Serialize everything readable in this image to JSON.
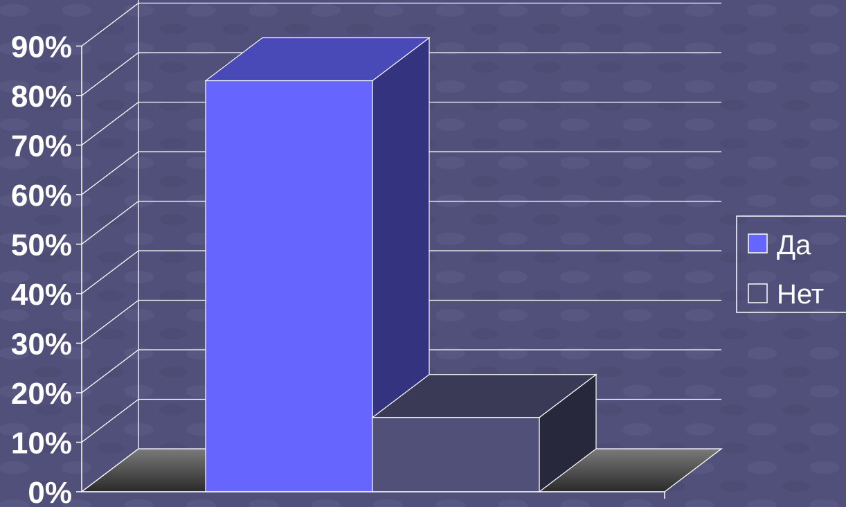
{
  "chart_data": {
    "type": "bar",
    "style": "3d-column",
    "title": "",
    "xlabel": "",
    "ylabel": "",
    "ylim": [
      0,
      90
    ],
    "y_ticks": [
      0,
      10,
      20,
      30,
      40,
      50,
      60,
      70,
      80,
      90
    ],
    "y_tick_labels": [
      "0%",
      "10%",
      "20%",
      "30%",
      "40%",
      "50%",
      "60%",
      "70%",
      "80%",
      "90%"
    ],
    "grid": true,
    "legend_position": "right",
    "series": [
      {
        "name": "Да",
        "values": [
          83
        ],
        "color": "#6666ff"
      },
      {
        "name": "Нет",
        "values": [
          15
        ],
        "color": "#505078"
      }
    ],
    "colors": {
      "background": "#50507a",
      "gridline": "#ffffff",
      "floor": "#404040",
      "text": "#ffffff"
    }
  }
}
